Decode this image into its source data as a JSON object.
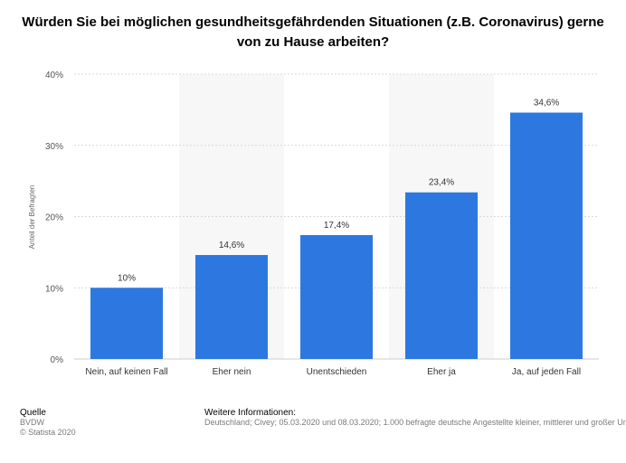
{
  "chart_data": {
    "type": "bar",
    "title": "Würden Sie bei möglichen gesundheitsgefährdenden Situationen (z.B. Coronavirus) gerne von zu Hause arbeiten?",
    "categories": [
      "Nein, auf keinen Fall",
      "Eher nein",
      "Unentschieden",
      "Eher ja",
      "Ja, auf jeden Fall"
    ],
    "values": [
      10,
      14.6,
      17.4,
      23.4,
      34.6
    ],
    "value_labels": [
      "10%",
      "14,6%",
      "17,4%",
      "23,4%",
      "34,6%"
    ],
    "ylabel": "Anteil der Befragten",
    "ylim": [
      0,
      40
    ],
    "yticks": [
      0,
      10,
      20,
      30,
      40
    ],
    "ytick_labels": [
      "0%",
      "10%",
      "20%",
      "30%",
      "40%"
    ],
    "grid": true,
    "bar_color": "#2c78e0"
  },
  "footer": {
    "source_heading": "Quelle",
    "source_name": "BVDW",
    "copyright": "© Statista 2020",
    "info_heading": "Weitere Informationen:",
    "info_text": "Deutschland; Civey; 05.03.2020 und 08.03.2020; 1.000 befragte deutsche Angestellte kleiner, mittlerer und großer Unternehmen"
  }
}
